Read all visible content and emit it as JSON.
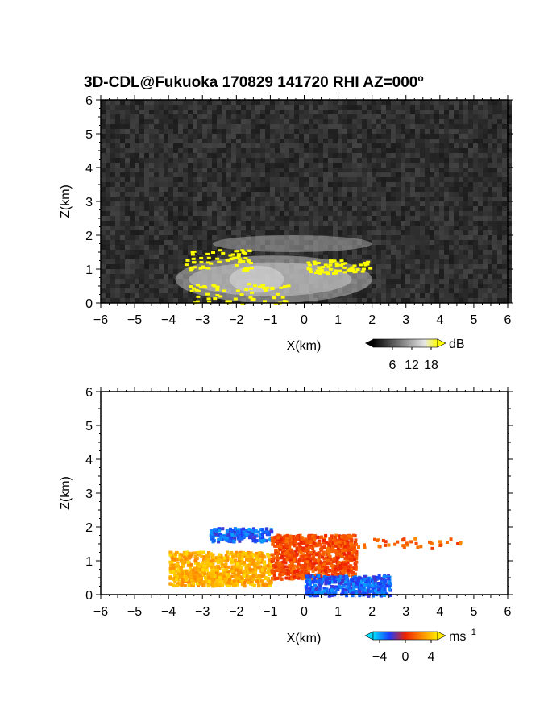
{
  "title": "3D-CDL@Fukuoka 170829 141720 RHI AZ=000",
  "title_degree": "o",
  "chart_data": [
    {
      "type": "heatmap",
      "name": "snr",
      "xlabel": "X(km)",
      "ylabel": "Z(km)",
      "xlim": [
        -6,
        6
      ],
      "ylim": [
        0,
        6
      ],
      "xticks": [
        -6,
        -5,
        -4,
        -3,
        -2,
        -1,
        0,
        1,
        2,
        3,
        4,
        5,
        6
      ],
      "yticks": [
        0,
        1,
        2,
        3,
        4,
        5,
        6
      ],
      "colorbar": {
        "unit": "dB",
        "ticks": [
          6,
          12,
          18
        ],
        "palette": "gray-to-yellow",
        "range": [
          0,
          20
        ]
      },
      "background": "dark noise",
      "features": [
        {
          "desc": "echo layer",
          "x": [
            -2.7,
            2.0
          ],
          "z": [
            1.5,
            2.0
          ]
        },
        {
          "desc": "bright boundary layer echo",
          "x": [
            -3.8,
            2.0
          ],
          "z": [
            0.0,
            1.4
          ]
        },
        {
          "desc": "high SNR (yellow) patches",
          "x": [
            -3.6,
            -1.6
          ],
          "z": [
            1.0,
            1.6
          ]
        },
        {
          "desc": "high SNR (yellow) patches",
          "x": [
            0.0,
            1.9
          ],
          "z": [
            0.9,
            1.3
          ]
        },
        {
          "desc": "high SNR near ground",
          "x": [
            -3.4,
            -0.5
          ],
          "z": [
            0.0,
            0.6
          ]
        }
      ]
    },
    {
      "type": "heatmap",
      "name": "velocity",
      "xlabel": "X(km)",
      "ylabel": "Z(km)",
      "xlim": [
        -6,
        6
      ],
      "ylim": [
        0,
        6
      ],
      "xticks": [
        -6,
        -5,
        -4,
        -3,
        -2,
        -1,
        0,
        1,
        2,
        3,
        4,
        5,
        6
      ],
      "yticks": [
        0,
        1,
        2,
        3,
        4,
        5,
        6
      ],
      "colorbar": {
        "unit": "ms",
        "unit_exponent": "−1",
        "ticks": [
          "−4",
          "0",
          "4"
        ],
        "palette": "cyan-blue-red-yellow",
        "range": [
          -5,
          5
        ]
      },
      "features": [
        {
          "desc": "negative velocity layer (blue)",
          "x": [
            -2.8,
            -1.0
          ],
          "z": [
            1.6,
            2.0
          ],
          "v": -3
        },
        {
          "desc": "positive velocity (yellow/orange)",
          "x": [
            -4.0,
            -1.0
          ],
          "z": [
            0.3,
            1.3
          ],
          "v": 3.5
        },
        {
          "desc": "positive velocity (red)",
          "x": [
            -1.0,
            1.5
          ],
          "z": [
            0.5,
            1.8
          ],
          "v": 1
        },
        {
          "desc": "negative velocity near ground",
          "x": [
            0.0,
            2.5
          ],
          "z": [
            0.0,
            0.6
          ],
          "v": -3
        },
        {
          "desc": "scattered returns aloft",
          "x": [
            1.5,
            4.6
          ],
          "z": [
            1.4,
            1.7
          ],
          "v": 1.5
        }
      ]
    }
  ]
}
